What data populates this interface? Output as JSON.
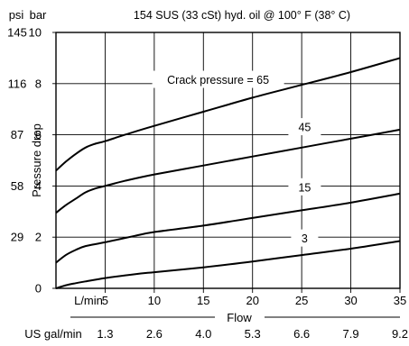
{
  "chart_data": {
    "type": "line",
    "title": "154 SUS (33 cSt) hyd. oil @ 100° F (38° C)",
    "xlabel": "Flow",
    "ylabel": "Pressure drop",
    "x_unit_label": "L/min",
    "x2_unit_label": "US gal/min",
    "y_unit_label": "bar",
    "y2_unit_label": "psi",
    "xlim": [
      0,
      35
    ],
    "ylim": [
      0,
      10
    ],
    "x_ticks": [
      5,
      10,
      15,
      20,
      25,
      30,
      35
    ],
    "x_tick_labels": [
      "5",
      "10",
      "15",
      "20",
      "25",
      "30",
      "35"
    ],
    "x2_tick_labels": [
      "1.3",
      "2.6",
      "4.0",
      "5.3",
      "6.6",
      "7.9",
      "9.2"
    ],
    "y_ticks": [
      0,
      2,
      4,
      6,
      8,
      10
    ],
    "y_tick_labels": [
      "0",
      "2",
      "4",
      "6",
      "8",
      "10"
    ],
    "y2_tick_labels": [
      "29",
      "58",
      "87",
      "116",
      "145"
    ],
    "grid": true,
    "series": [
      {
        "name": "Crack pressure = 65",
        "x": [
          0,
          1,
          2,
          3,
          4,
          5,
          7,
          10,
          15,
          20,
          25,
          30,
          35
        ],
        "y": [
          4.6,
          4.95,
          5.25,
          5.5,
          5.65,
          5.75,
          6.0,
          6.35,
          6.9,
          7.45,
          7.95,
          8.45,
          9.0
        ]
      },
      {
        "name": "45",
        "x": [
          0,
          1,
          2,
          3,
          4,
          5,
          7,
          10,
          15,
          20,
          25,
          30,
          35
        ],
        "y": [
          2.95,
          3.25,
          3.5,
          3.75,
          3.9,
          4.0,
          4.2,
          4.45,
          4.8,
          5.15,
          5.5,
          5.85,
          6.2
        ]
      },
      {
        "name": "15",
        "x": [
          0,
          1,
          2,
          3,
          5,
          8,
          10,
          15,
          20,
          25,
          30,
          35
        ],
        "y": [
          1.0,
          1.3,
          1.5,
          1.65,
          1.8,
          2.05,
          2.2,
          2.45,
          2.75,
          3.05,
          3.35,
          3.7
        ]
      },
      {
        "name": "3",
        "x": [
          0,
          1,
          2,
          3,
          5,
          8,
          10,
          15,
          20,
          25,
          30,
          35
        ],
        "y": [
          0.0,
          0.12,
          0.2,
          0.27,
          0.4,
          0.55,
          0.63,
          0.82,
          1.05,
          1.3,
          1.55,
          1.85
        ]
      }
    ]
  }
}
